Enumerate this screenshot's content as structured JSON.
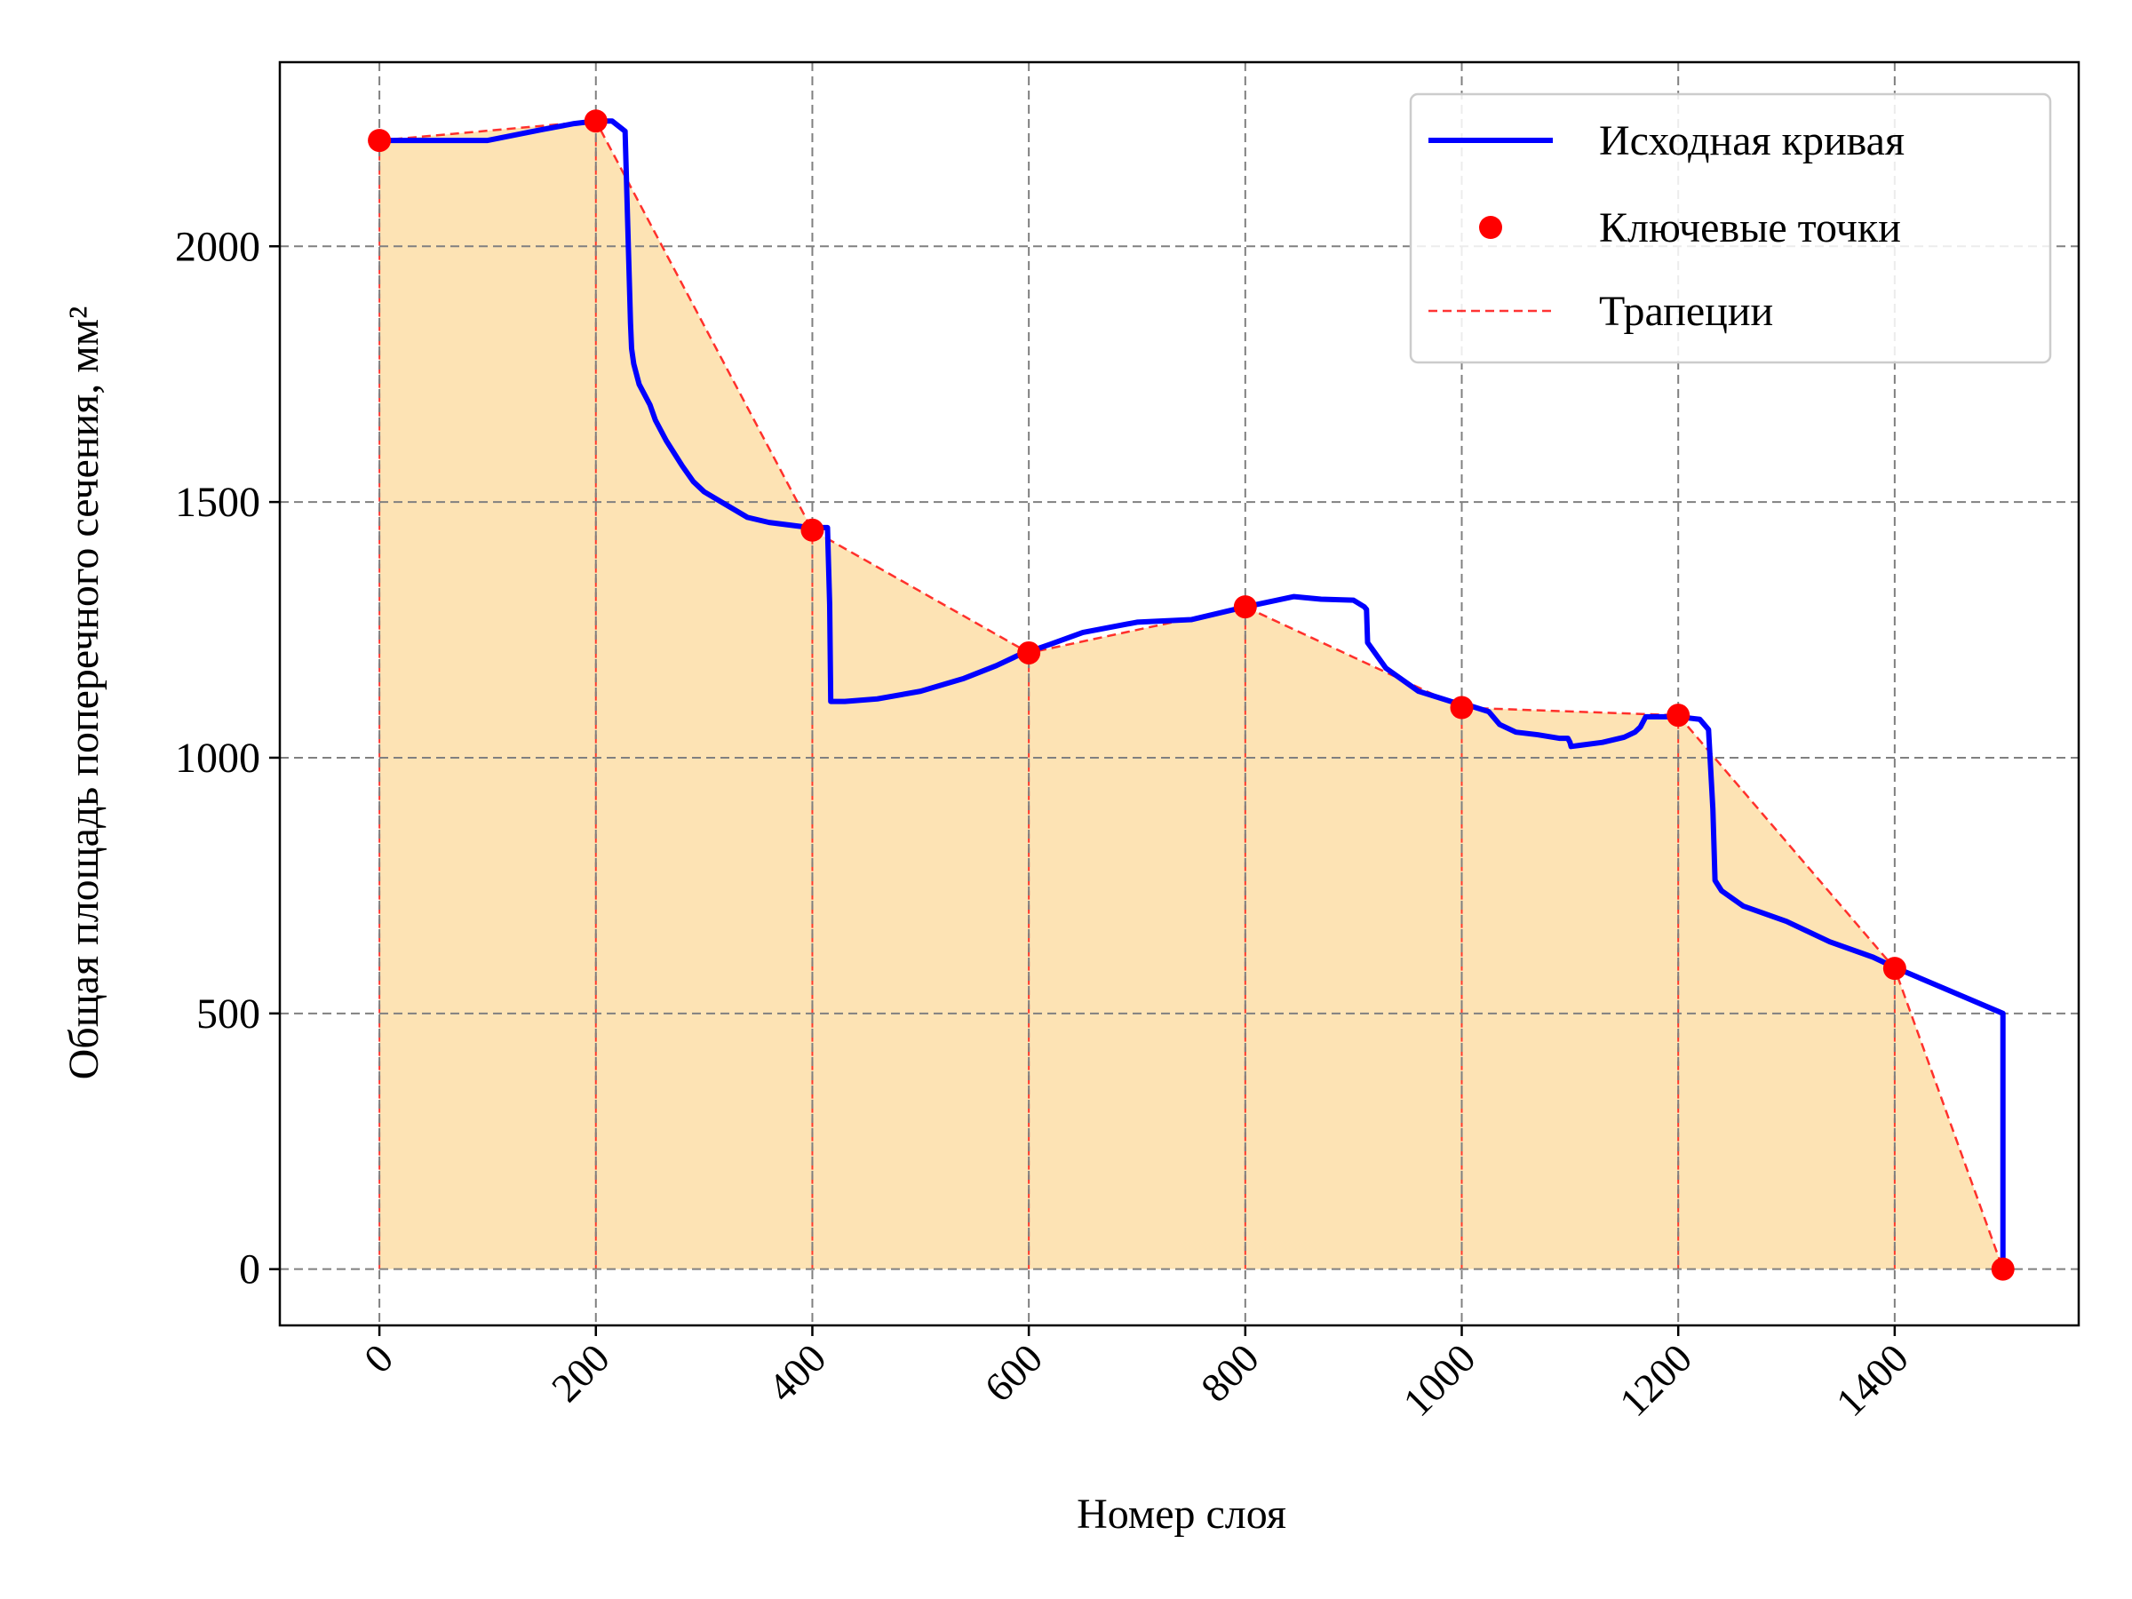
{
  "chart_data": {
    "type": "line",
    "title": "",
    "xlabel": "Номер слоя",
    "ylabel": "Общая площадь поперечного сечения, мм²",
    "xlim": [
      -92,
      1570
    ],
    "ylim": [
      -110,
      2360
    ],
    "x_ticks": [
      0,
      200,
      400,
      600,
      800,
      1000,
      1200,
      1400
    ],
    "y_ticks": [
      0,
      500,
      1000,
      1500,
      2000
    ],
    "x_tick_labels": [
      "0",
      "200",
      "400",
      "600",
      "800",
      "1000",
      "1200",
      "1400"
    ],
    "y_tick_labels": [
      "0",
      "500",
      "1000",
      "1500",
      "2000"
    ],
    "grid": true,
    "legend_position": "upper right",
    "legend": {
      "curve": "Исходная кривая",
      "points": "Ключевые точки",
      "trapezoids": "Трапеции"
    },
    "colors": {
      "curve": "#0000ff",
      "points": "#ff0000",
      "trapezoids": "#ff0000",
      "fill": "#fde3b4",
      "grid": "#808080"
    },
    "series": [
      {
        "name": "Исходная кривая",
        "style": "solid",
        "x": [
          0,
          100,
          150,
          180,
          200,
          215,
          227,
          230,
          232,
          233,
          235,
          240,
          250,
          255,
          265,
          280,
          290,
          300,
          320,
          340,
          360,
          390,
          410,
          414,
          416,
          417,
          430,
          460,
          500,
          540,
          570,
          590,
          620,
          650,
          700,
          750,
          800,
          845,
          870,
          900,
          910,
          912,
          913,
          930,
          960,
          990,
          1010,
          1025,
          1035,
          1050,
          1070,
          1090,
          1098,
          1100,
          1101,
          1130,
          1150,
          1160,
          1165,
          1170,
          1200,
          1220,
          1228,
          1232,
          1234,
          1240,
          1260,
          1300,
          1340,
          1380,
          1400,
          1450,
          1500,
          1500
        ],
        "y": [
          2207,
          2207,
          2228,
          2240,
          2245,
          2245,
          2225,
          2000,
          1850,
          1800,
          1770,
          1730,
          1690,
          1660,
          1620,
          1570,
          1540,
          1520,
          1495,
          1470,
          1460,
          1452,
          1450,
          1450,
          1300,
          1110,
          1110,
          1115,
          1130,
          1155,
          1180,
          1200,
          1222,
          1245,
          1265,
          1270,
          1295,
          1315,
          1310,
          1308,
          1295,
          1290,
          1225,
          1175,
          1130,
          1110,
          1100,
          1090,
          1065,
          1050,
          1045,
          1038,
          1038,
          1030,
          1022,
          1030,
          1040,
          1050,
          1060,
          1080,
          1080,
          1075,
          1055,
          900,
          760,
          740,
          710,
          680,
          640,
          610,
          590,
          545,
          500,
          0
        ]
      },
      {
        "name": "Ключевые точки",
        "style": "markers",
        "x": [
          0,
          200,
          400,
          600,
          800,
          1000,
          1200,
          1400,
          1500
        ],
        "y": [
          2207,
          2245,
          1445,
          1205,
          1295,
          1098,
          1083,
          588,
          0
        ]
      },
      {
        "name": "Трапеции",
        "style": "dashed",
        "x": [
          0,
          200,
          400,
          600,
          800,
          1000,
          1200,
          1400,
          1500
        ],
        "y": [
          2207,
          2245,
          1445,
          1205,
          1295,
          1098,
          1083,
          588,
          0
        ]
      }
    ]
  }
}
